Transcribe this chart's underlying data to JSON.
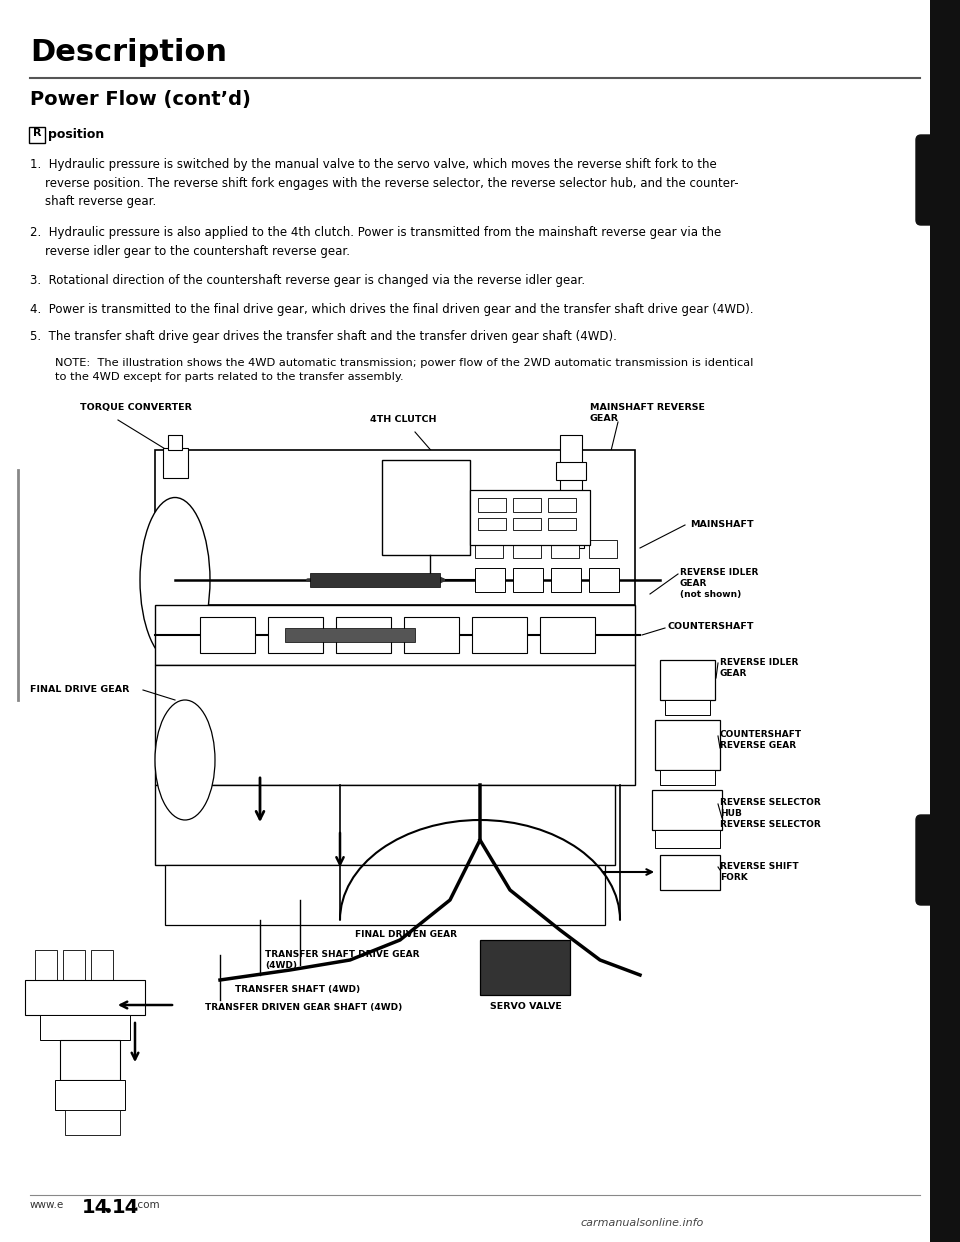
{
  "bg_color": "#ffffff",
  "title_main": "Description",
  "title_sub": "Power Flow (cont’d)",
  "item1": "1.  Hydraulic pressure is switched by the manual valve to the servo valve, which moves the reverse shift fork to the\n    reverse position. The reverse shift fork engages with the reverse selector, the reverse selector hub, and the counter-\n    shaft reverse gear.",
  "item2": "2.  Hydraulic pressure is also applied to the 4th clutch. Power is transmitted from the mainshaft reverse gear via the\n    reverse idler gear to the countershaft reverse gear.",
  "item3": "3.  Rotational direction of the countershaft reverse gear is changed via the reverse idler gear.",
  "item4": "4.  Power is transmitted to the final drive gear, which drives the final driven gear and the transfer shaft drive gear (4WD).",
  "item5": "5.  The transfer shaft drive gear drives the transfer shaft and the transfer driven gear shaft (4WD).",
  "note_text": "NOTE:  The illustration shows the 4WD automatic transmission; power flow of the 2WD automatic transmission is identical\nto the 4WD except for parts related to the transfer assembly.",
  "right_bar_color": "#111111",
  "text_color": "#000000",
  "footer_page": "14-14"
}
